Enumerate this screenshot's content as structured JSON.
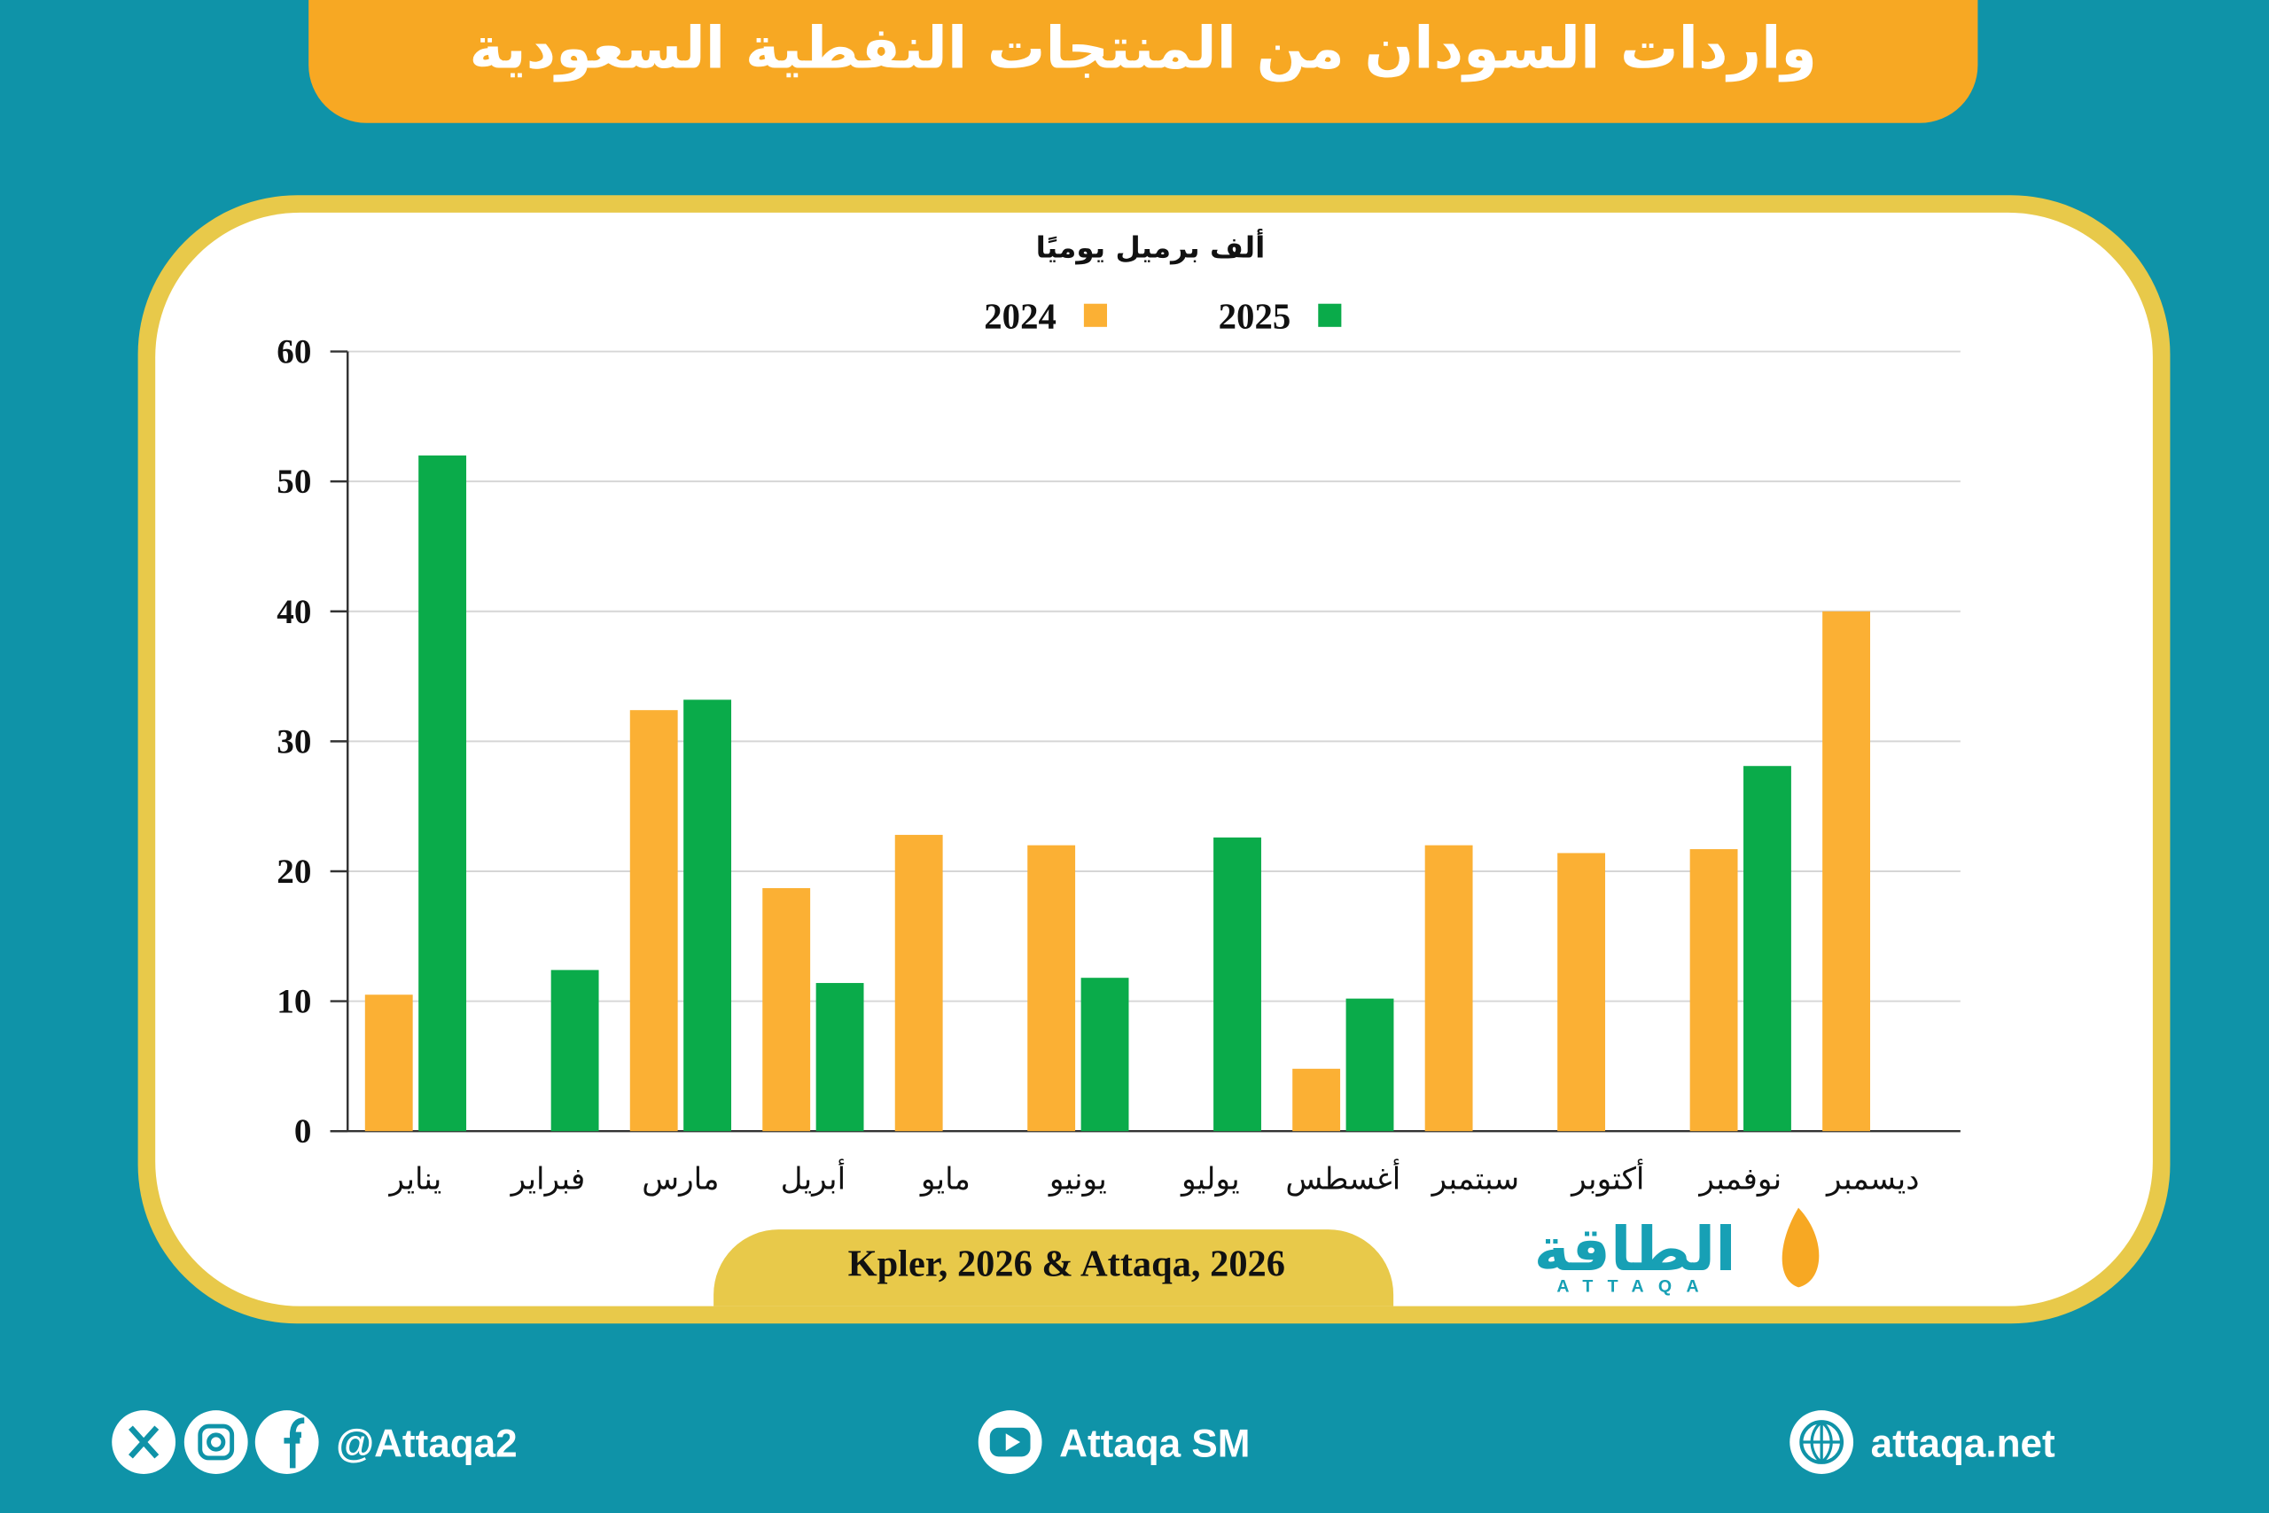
{
  "header": {
    "title": "واردات السودان من المنتجات النفطية السعودية"
  },
  "chart_data": {
    "type": "bar",
    "y_label": "ألف برميل يوميًا",
    "categories": [
      "يناير",
      "فبراير",
      "مارس",
      "أبريل",
      "مايو",
      "يونيو",
      "يوليو",
      "أغسطس",
      "سبتمبر",
      "أكتوبر",
      "نوفمبر",
      "ديسمبر"
    ],
    "series": [
      {
        "name": "2024",
        "color": "#fbb034",
        "values": [
          10.5,
          null,
          32.4,
          18.7,
          22.8,
          22,
          null,
          4.8,
          22,
          21.4,
          21.7,
          40
        ]
      },
      {
        "name": "2025",
        "color": "#0aab4a",
        "values": [
          52,
          12.4,
          33.2,
          11.4,
          null,
          11.8,
          22.6,
          10.2,
          null,
          null,
          28.1,
          null
        ]
      }
    ],
    "ylim": [
      0,
      60
    ],
    "yticks": [
      0,
      10,
      20,
      30,
      40,
      50,
      60
    ],
    "grid": true,
    "source": "Kpler, 2026 & Attaqa, 2026"
  },
  "logo": {
    "text": "الطاقة",
    "subtext": "ATTAQA"
  },
  "footer": {
    "social": "@Attaqa2",
    "youtube": "Attaqa SM",
    "website": "attaqa.net"
  }
}
